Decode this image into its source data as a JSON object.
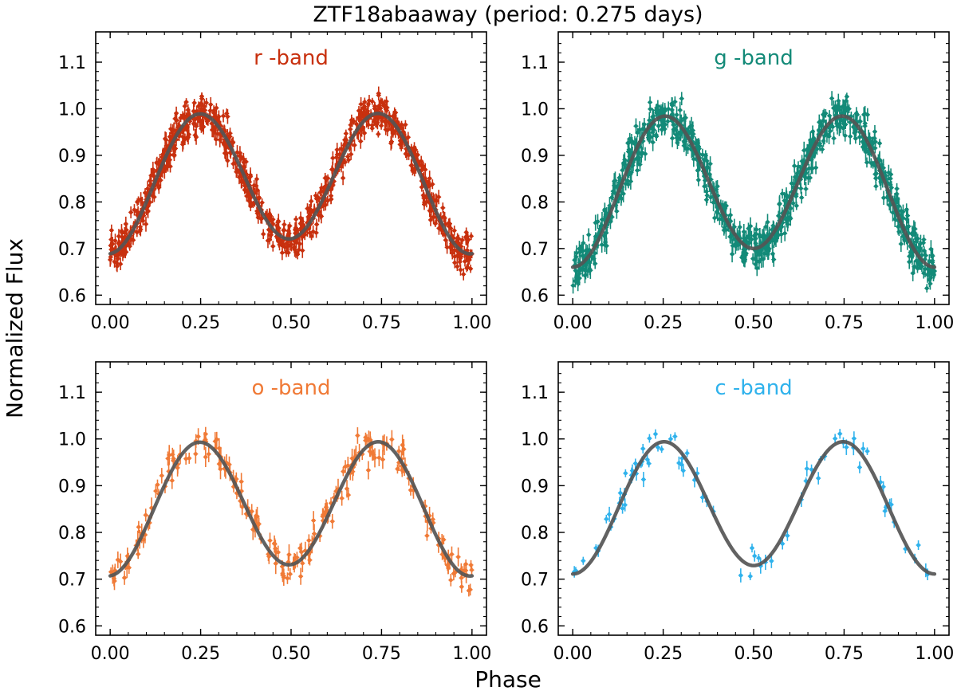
{
  "title": "ZTF18abaaway (period: 0.275 days)",
  "xlabel": "Phase",
  "ylabel": "Normalized Flux",
  "fit_color": "#555555",
  "chart_data": [
    {
      "type": "scatter",
      "band_label": "r -band",
      "color": "#c8300e",
      "xlim": [
        -0.04,
        1.04
      ],
      "ylim": [
        0.58,
        1.165
      ],
      "xticks": [
        "0.00",
        "0.25",
        "0.50",
        "0.75",
        "1.00"
      ],
      "yticks": [
        "0.6",
        "0.7",
        "0.8",
        "0.9",
        "1.0",
        "1.1"
      ],
      "fit_model": {
        "mean": 0.847,
        "a1": -0.016,
        "a2": -0.142,
        "b2": 0.01
      },
      "points": {
        "count": 900,
        "scatter": 0.02,
        "errorbar": 0.012,
        "seed": 11
      },
      "fit_curve": "model"
    },
    {
      "type": "scatter",
      "band_label": "g -band",
      "color": "#138a78",
      "xlim": [
        -0.04,
        1.04
      ],
      "ylim": [
        0.58,
        1.165
      ],
      "xticks": [
        "0.00",
        "0.25",
        "0.50",
        "0.75",
        "1.00"
      ],
      "yticks": [
        "0.6",
        "0.7",
        "0.8",
        "0.9",
        "1.0",
        "1.1"
      ],
      "fit_model": {
        "mean": 0.832,
        "a1": -0.02,
        "a2": -0.152,
        "b2": 0.0
      },
      "points": {
        "count": 900,
        "scatter": 0.022,
        "errorbar": 0.014,
        "seed": 23
      },
      "fit_curve": "model"
    },
    {
      "type": "scatter",
      "band_label": "o -band",
      "color": "#f07a36",
      "xlim": [
        -0.04,
        1.04
      ],
      "ylim": [
        0.58,
        1.165
      ],
      "xticks": [
        "0.00",
        "0.25",
        "0.50",
        "0.75",
        "1.00"
      ],
      "yticks": [
        "0.6",
        "0.7",
        "0.8",
        "0.9",
        "1.0",
        "1.1"
      ],
      "fit_model": {
        "mean": 0.856,
        "a1": -0.012,
        "a2": -0.137,
        "b2": 0.01
      },
      "points": {
        "count": 230,
        "scatter": 0.02,
        "errorbar": 0.016,
        "seed": 37
      },
      "fit_curve": "model"
    },
    {
      "type": "scatter",
      "band_label": "c -band",
      "color": "#2fb2ec",
      "xlim": [
        -0.04,
        1.04
      ],
      "ylim": [
        0.58,
        1.165
      ],
      "xticks": [
        "0.00",
        "0.25",
        "0.50",
        "0.75",
        "1.00"
      ],
      "yticks": [
        "0.6",
        "0.7",
        "0.8",
        "0.9",
        "1.0",
        "1.1"
      ],
      "fit_model": {
        "mean": 0.857,
        "a1": -0.009,
        "a2": -0.137,
        "b2": 0.0
      },
      "points": {
        "count": 80,
        "scatter": 0.018,
        "errorbar": 0.012,
        "seed": 53
      },
      "fit_curve": "model"
    }
  ]
}
